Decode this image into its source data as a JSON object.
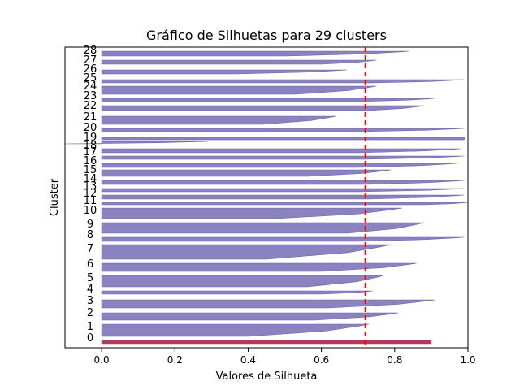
{
  "chart_data": {
    "type": "bar",
    "orientation": "horizontal",
    "title": "Gráfico de Silhuetas para 29 clusters",
    "xlabel": "Valores de Silhueta",
    "ylabel": "Cluster",
    "xlim": [
      -0.1,
      1.0
    ],
    "xticks": [
      "0.0",
      "0.2",
      "0.4",
      "0.6",
      "0.8",
      "1.0"
    ],
    "grid": false,
    "threshold": {
      "value": 0.72,
      "color": "#ff0000",
      "style": "dashed"
    },
    "colors": {
      "fill": "#8a83c0",
      "edge": "#6c63a8",
      "cluster0_fill": "#b03a5a"
    },
    "clusters": [
      {
        "label": "0",
        "max": 0.9,
        "min": 0.9
      },
      {
        "label": "1",
        "max": 0.73,
        "min": 0.4
      },
      {
        "label": "2",
        "max": 0.81,
        "min": 0.58
      },
      {
        "label": "3",
        "max": 0.91,
        "min": 0.62
      },
      {
        "label": "4",
        "max": 0.74,
        "min": 0.6
      },
      {
        "label": "5",
        "max": 0.77,
        "min": 0.56
      },
      {
        "label": "6",
        "max": 0.86,
        "min": 0.6
      },
      {
        "label": "7",
        "max": 0.79,
        "min": 0.45
      },
      {
        "label": "8",
        "max": 0.99,
        "min": 0.7
      },
      {
        "label": "9",
        "max": 0.88,
        "min": 0.67
      },
      {
        "label": "10",
        "max": 0.82,
        "min": 0.48
      },
      {
        "label": "11",
        "max": 1.0,
        "min": 0.88
      },
      {
        "label": "12",
        "max": 0.99,
        "min": 0.73
      },
      {
        "label": "13",
        "max": 0.99,
        "min": 0.7
      },
      {
        "label": "14",
        "max": 0.99,
        "min": 0.72
      },
      {
        "label": "15",
        "max": 0.79,
        "min": 0.56
      },
      {
        "label": "16",
        "max": 0.97,
        "min": 0.7
      },
      {
        "label": "17",
        "max": 0.99,
        "min": 0.72
      },
      {
        "label": "18",
        "max": 0.98,
        "min": 0.7
      },
      {
        "label": "19",
        "max": 0.29,
        "min": -0.1
      },
      {
        "label": "20",
        "max": 0.99,
        "min": 0.7
      },
      {
        "label": "21",
        "max": 0.64,
        "min": 0.44
      },
      {
        "label": "22",
        "max": 0.88,
        "min": 0.73
      },
      {
        "label": "23",
        "max": 0.91,
        "min": 0.7
      },
      {
        "label": "24",
        "max": 0.75,
        "min": 0.53
      },
      {
        "label": "25",
        "max": 0.99,
        "min": 0.74
      },
      {
        "label": "26",
        "max": 0.67,
        "min": 0.37
      },
      {
        "label": "27",
        "max": 0.75,
        "min": 0.6
      },
      {
        "label": "28",
        "max": 0.84,
        "min": 0.5
      }
    ]
  }
}
